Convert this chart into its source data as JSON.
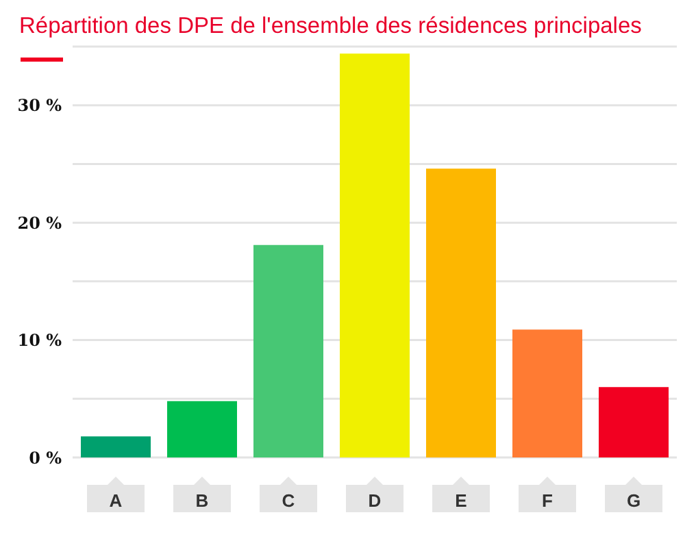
{
  "chart_data": {
    "type": "bar",
    "title": "Répartition des DPE de l'ensemble des résidences principales",
    "categories": [
      "A",
      "B",
      "C",
      "D",
      "E",
      "F",
      "G"
    ],
    "values": [
      1.8,
      4.8,
      18.1,
      34.4,
      24.6,
      10.9,
      6.0
    ],
    "colors": [
      "#00a06d",
      "#00bd50",
      "#47c774",
      "#f0f000",
      "#fdb700",
      "#ff7b33",
      "#f20021"
    ],
    "ylim": [
      0,
      35
    ],
    "yticks": [
      {
        "value": 0,
        "label": "0 %"
      },
      {
        "value": 5,
        "label": null
      },
      {
        "value": 10,
        "label": "10 %"
      },
      {
        "value": 15,
        "label": null
      },
      {
        "value": 20,
        "label": "20 %"
      },
      {
        "value": 25,
        "label": null
      },
      {
        "value": 30,
        "label": "30 %"
      },
      {
        "value": 35,
        "label": null
      }
    ],
    "grid": "y"
  }
}
